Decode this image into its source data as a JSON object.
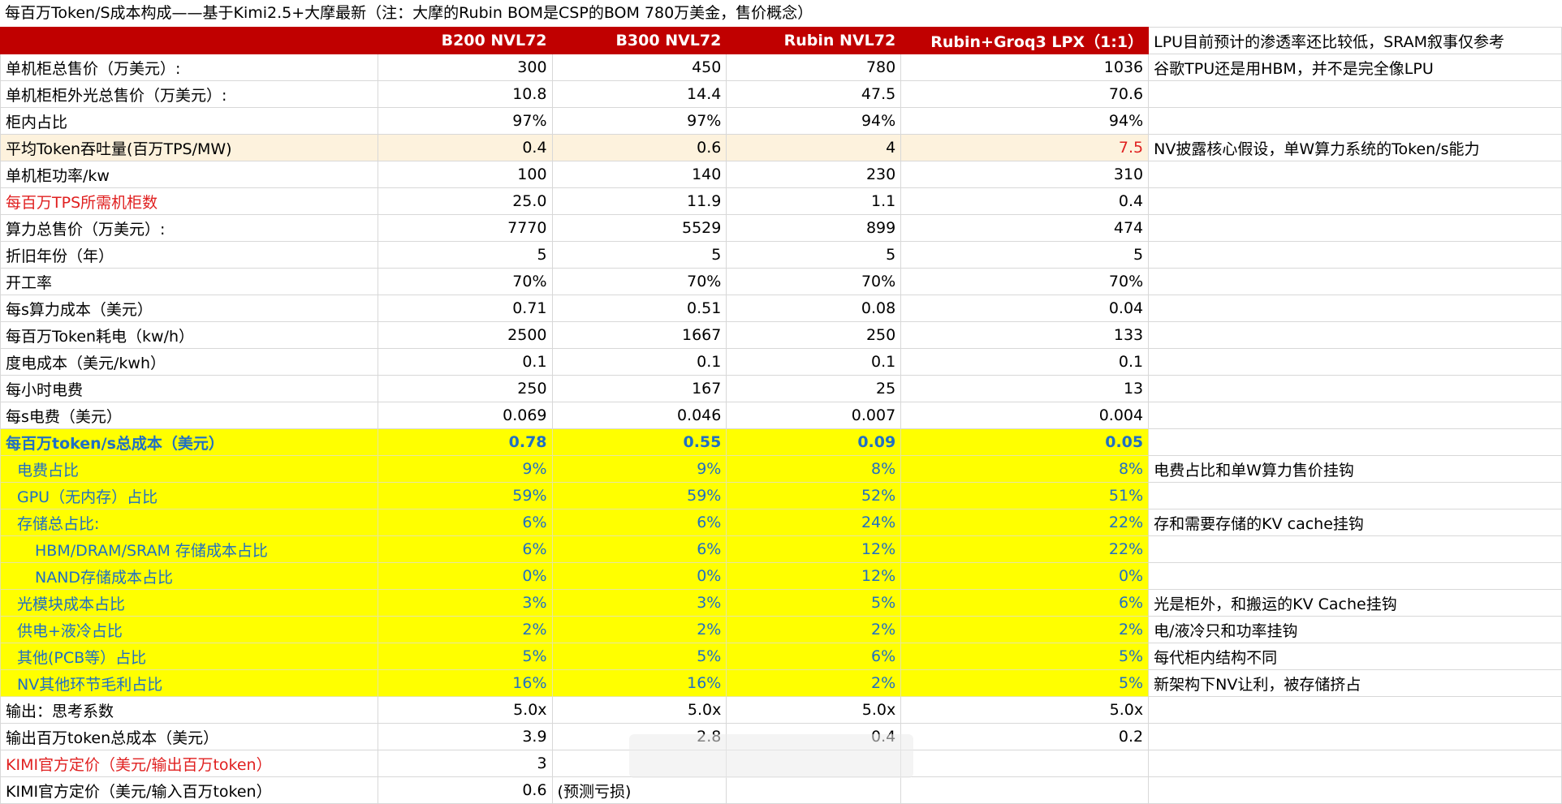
{
  "title": "每百万Token/S成本构成——基于Kimi2.5+大摩最新（注：大摩的Rubin BOM是CSP的BOM 780万美金，售价概念）",
  "header": {
    "c0": "",
    "c1": "B200 NVL72",
    "c2": "B300 NVL72",
    "c3": "Rubin NVL72",
    "c4": "Rubin+Groq3 LPX（1:1）",
    "note": "LPU目前预计的渗透率还比较低，SRAM叙事仅参考"
  },
  "rows": [
    {
      "label": "单机柜总售价（万美元）:",
      "c1": "300",
      "c2": "450",
      "c3": "780",
      "c4": "1036",
      "note": "谷歌TPU还是用HBM，并不是完全像LPU"
    },
    {
      "label": "单机柜柜外光总售价（万美元）:",
      "c1": "10.8",
      "c2": "14.4",
      "c3": "47.5",
      "c4": "70.6",
      "note": ""
    },
    {
      "label": "柜内占比",
      "c1": "97%",
      "c2": "97%",
      "c3": "94%",
      "c4": "94%",
      "note": ""
    },
    {
      "label": "平均Token吞吐量(百万TPS/MW)",
      "c1": "0.4",
      "c2": "0.6",
      "c3": "4",
      "c4": "7.5",
      "note": "NV披露核心假设，单W算力系统的Token/s能力"
    },
    {
      "label": "单机柜功率/kw",
      "c1": "100",
      "c2": "140",
      "c3": "230",
      "c4": "310",
      "note": ""
    },
    {
      "label": "每百万TPS所需机柜数",
      "c1": "25.0",
      "c2": "11.9",
      "c3": "1.1",
      "c4": "0.4",
      "note": ""
    },
    {
      "label": "算力总售价（万美元）:",
      "c1": "7770",
      "c2": "5529",
      "c3": "899",
      "c4": "474",
      "note": ""
    },
    {
      "label": "折旧年份（年）",
      "c1": "5",
      "c2": "5",
      "c3": "5",
      "c4": "5",
      "note": ""
    },
    {
      "label": "开工率",
      "c1": "70%",
      "c2": "70%",
      "c3": "70%",
      "c4": "70%",
      "note": ""
    },
    {
      "label": "每s算力成本（美元）",
      "c1": "0.71",
      "c2": "0.51",
      "c3": "0.08",
      "c4": "0.04",
      "note": ""
    },
    {
      "label": "每百万Token耗电（kw/h）",
      "c1": "2500",
      "c2": "1667",
      "c3": "250",
      "c4": "133",
      "note": ""
    },
    {
      "label": "度电成本（美元/kwh）",
      "c1": "0.1",
      "c2": "0.1",
      "c3": "0.1",
      "c4": "0.1",
      "note": ""
    },
    {
      "label": "每小时电费",
      "c1": "250",
      "c2": "167",
      "c3": "25",
      "c4": "13",
      "note": ""
    },
    {
      "label": "每s电费（美元）",
      "c1": "0.069",
      "c2": "0.046",
      "c3": "0.007",
      "c4": "0.004",
      "note": ""
    },
    {
      "label": "每百万token/s总成本（美元）",
      "c1": "0.78",
      "c2": "0.55",
      "c3": "0.09",
      "c4": "0.05",
      "note": ""
    },
    {
      "label": "电费占比",
      "c1": "9%",
      "c2": "9%",
      "c3": "8%",
      "c4": "8%",
      "note": "电费占比和单W算力售价挂钩"
    },
    {
      "label": "GPU（无内存）占比",
      "c1": "59%",
      "c2": "59%",
      "c3": "52%",
      "c4": "51%",
      "note": ""
    },
    {
      "label": "存储总占比:",
      "c1": "6%",
      "c2": "6%",
      "c3": "24%",
      "c4": "22%",
      "note": "存和需要存储的KV cache挂钩"
    },
    {
      "label": "HBM/DRAM/SRAM 存储成本占比",
      "c1": "6%",
      "c2": "6%",
      "c3": "12%",
      "c4": "22%",
      "note": ""
    },
    {
      "label": "NAND存储成本占比",
      "c1": "0%",
      "c2": "0%",
      "c3": "12%",
      "c4": "0%",
      "note": ""
    },
    {
      "label": "光模块成本占比",
      "c1": "3%",
      "c2": "3%",
      "c3": "5%",
      "c4": "6%",
      "note": "光是柜外，和搬运的KV Cache挂钩"
    },
    {
      "label": "供电+液冷占比",
      "c1": "2%",
      "c2": "2%",
      "c3": "2%",
      "c4": "2%",
      "note": "电/液冷只和功率挂钩"
    },
    {
      "label": "其他(PCB等）占比",
      "c1": "5%",
      "c2": "5%",
      "c3": "6%",
      "c4": "5%",
      "note": "每代柜内结构不同"
    },
    {
      "label": "NV其他环节毛利占比",
      "c1": "16%",
      "c2": "16%",
      "c3": "2%",
      "c4": "5%",
      "note": "新架构下NV让利，被存储挤占"
    },
    {
      "label": "输出：思考系数",
      "c1": "5.0x",
      "c2": "5.0x",
      "c3": "5.0x",
      "c4": "5.0x",
      "note": ""
    },
    {
      "label": "输出百万token总成本（美元）",
      "c1": "3.9",
      "c2": "2.8",
      "c3": "0.4",
      "c4": "0.2",
      "note": ""
    },
    {
      "label": "KIMI官方定价（美元/输出百万token）",
      "c1": "3",
      "c2": "",
      "c3": "",
      "c4": "",
      "note": ""
    },
    {
      "label": "KIMI官方定价（美元/输入百万token）",
      "c1": "0.6",
      "c2": "(预测亏损)",
      "c3": "",
      "c4": "",
      "note": ""
    }
  ]
}
